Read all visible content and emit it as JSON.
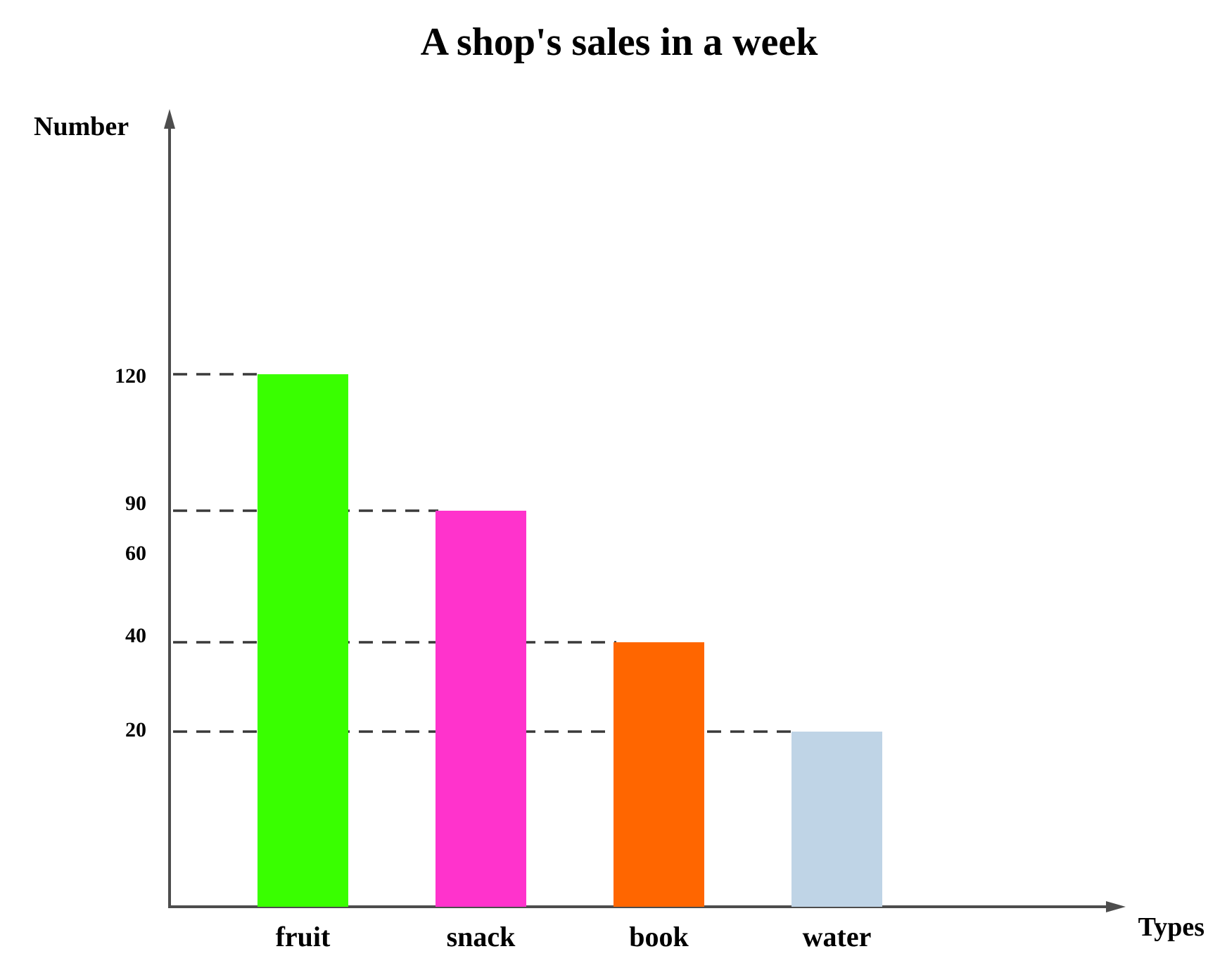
{
  "chart_data": {
    "type": "bar",
    "title": "A shop's sales in a week",
    "xlabel": "Types",
    "ylabel": "Number",
    "categories": [
      "fruit",
      "snack",
      "book",
      "water"
    ],
    "values": [
      120,
      90,
      40,
      20
    ],
    "colors": [
      "#39ff00",
      "#ff33cc",
      "#ff6600",
      "#bfd4e6"
    ],
    "y_tick_labels": [
      "120",
      "90",
      "60",
      "40",
      "20"
    ],
    "grid": false,
    "guide_lines": "dashed"
  }
}
